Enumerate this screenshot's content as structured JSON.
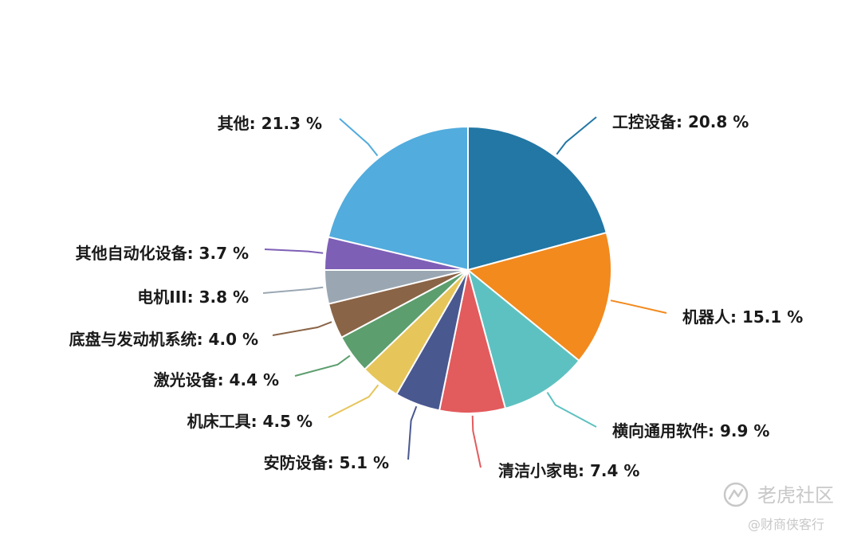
{
  "chart_data": {
    "type": "pie",
    "slices": [
      {
        "label": "工控设备",
        "value": 20.8,
        "display": "20.8 %",
        "color": "#2277a5"
      },
      {
        "label": "机器人",
        "value": 15.1,
        "display": "15.1 %",
        "color": "#f28a1e"
      },
      {
        "label": "横向通用软件",
        "value": 9.9,
        "display": "9.9 %",
        "color": "#5ec1c1"
      },
      {
        "label": "清洁小家电",
        "value": 7.4,
        "display": "7.4 %",
        "color": "#e25b5d"
      },
      {
        "label": "安防设备",
        "value": 5.1,
        "display": "5.1 %",
        "color": "#4a5890"
      },
      {
        "label": "机床工具",
        "value": 4.5,
        "display": "4.5 %",
        "color": "#e6c55b"
      },
      {
        "label": "激光设备",
        "value": 4.4,
        "display": "4.4 %",
        "color": "#5c9e6e"
      },
      {
        "label": "底盘与发动机系统",
        "value": 4.0,
        "display": "4.0 %",
        "color": "#8a6446"
      },
      {
        "label": "电机III",
        "value": 3.8,
        "display": "3.8 %",
        "color": "#9aa7b3"
      },
      {
        "label": "其他自动化设备",
        "value": 3.7,
        "display": "3.7 %",
        "color": "#7e5fb6"
      },
      {
        "label": "其他",
        "value": 21.3,
        "display": "21.3 %",
        "color": "#52acdd"
      }
    ]
  },
  "watermark": {
    "brand": "老虎社区",
    "author": "@财商侠客行"
  }
}
